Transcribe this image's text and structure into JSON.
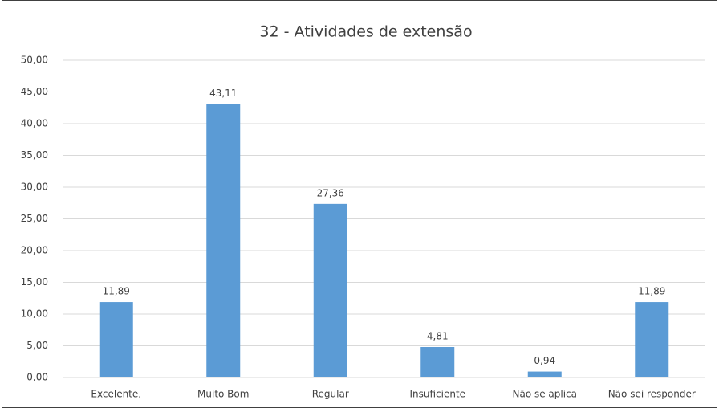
{
  "chart_data": {
    "type": "bar",
    "title": "32 - Atividades de extensão",
    "categories": [
      "Excelente,",
      "Muito Bom",
      "Regular",
      "Insuficiente",
      "Não se aplica",
      "Não sei responder"
    ],
    "values": [
      11.89,
      43.11,
      27.36,
      4.81,
      0.94,
      11.89
    ],
    "value_labels": [
      "11,89",
      "43,11",
      "27,36",
      "4,81",
      "0,94",
      "11,89"
    ],
    "color": "#5b9bd5",
    "ylim": [
      0,
      50
    ],
    "yticks": [
      {
        "value": 0,
        "label": "0,00"
      },
      {
        "value": 5,
        "label": "5,00"
      },
      {
        "value": 10,
        "label": "10,00"
      },
      {
        "value": 15,
        "label": "15,00"
      },
      {
        "value": 20,
        "label": "20,00"
      },
      {
        "value": 25,
        "label": "25,00"
      },
      {
        "value": 30,
        "label": "30,00"
      },
      {
        "value": 35,
        "label": "35,00"
      },
      {
        "value": 40,
        "label": "40,00"
      },
      {
        "value": 45,
        "label": "45,00"
      },
      {
        "value": 50,
        "label": "50,00"
      }
    ],
    "grid": true
  }
}
